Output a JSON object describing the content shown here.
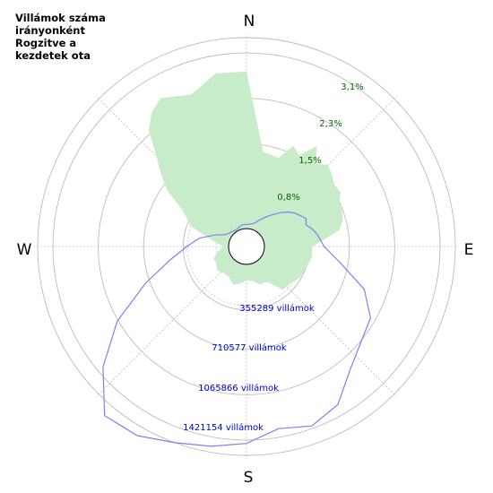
{
  "title": "Villámok száma\nirányonként\nRogzitve a\nkezdetek ota",
  "compass": {
    "n": "N",
    "e": "E",
    "s": "S",
    "w": "W"
  },
  "colors": {
    "fill": "#c8ecca",
    "line": "#7b82f0",
    "percent_labels": "#006600",
    "count_labels": "#0000cc",
    "grid": "#bbbbbb"
  },
  "chart_data": {
    "type": "polar-area",
    "percent_ticks": [
      "0,8%",
      "1,5%",
      "2,3%",
      "3,1%"
    ],
    "count_ticks": [
      "355289 villámok",
      "710577 villámok",
      "1065866 villámok",
      "1421154 villámok"
    ],
    "percent_ring_values": [
      0.8,
      1.5,
      2.3,
      3.1
    ],
    "count_ring_values": [
      355289,
      710577,
      1065866,
      1421154
    ],
    "direction_deg": [
      0,
      10,
      20,
      25,
      30,
      35,
      40,
      45,
      50,
      55,
      60,
      65,
      70,
      75,
      80,
      90,
      100,
      110,
      120,
      130,
      140,
      150,
      160,
      170,
      180,
      190,
      200,
      210,
      220,
      230,
      240,
      250,
      260,
      270,
      280,
      290,
      300,
      305,
      310,
      315,
      320,
      325,
      330,
      340,
      350
    ],
    "series": [
      {
        "values_pct": [
          2.77,
          1.38,
          1.35,
          1.65,
          1.54,
          1.85,
          1.59,
          1.72,
          1.65,
          1.58,
          1.6,
          1.49,
          1.48,
          1.44,
          1.35,
          0.85,
          0.85,
          0.8,
          0.78,
          0.7,
          0.68,
          0.4,
          0.4,
          0.3,
          0.28,
          0.35,
          0.4,
          0.3,
          0.3,
          0.35,
          0.3,
          0.3,
          0.2,
          0.1,
          0.3,
          0.73,
          1.0,
          1.38,
          1.65,
          1.93,
          2.37,
          2.59,
          2.71,
          2.54,
          2.79
        ]
      },
      {
        "values_count": [
          35000,
          40000,
          60000,
          90000,
          120000,
          160000,
          200000,
          250000,
          300000,
          340000,
          370000,
          400000,
          380000,
          420000,
          450000,
          500000,
          650000,
          900000,
          1050000,
          1100000,
          1200000,
          1380000,
          1450000,
          1400000,
          1500000,
          1550000,
          1600000,
          1680000,
          1700000,
          1420000,
          1100000,
          750000,
          500000,
          350000,
          250000,
          130000,
          50000,
          40000,
          30000,
          25000,
          20000,
          15000,
          15000,
          25000,
          35000
        ]
      }
    ]
  }
}
